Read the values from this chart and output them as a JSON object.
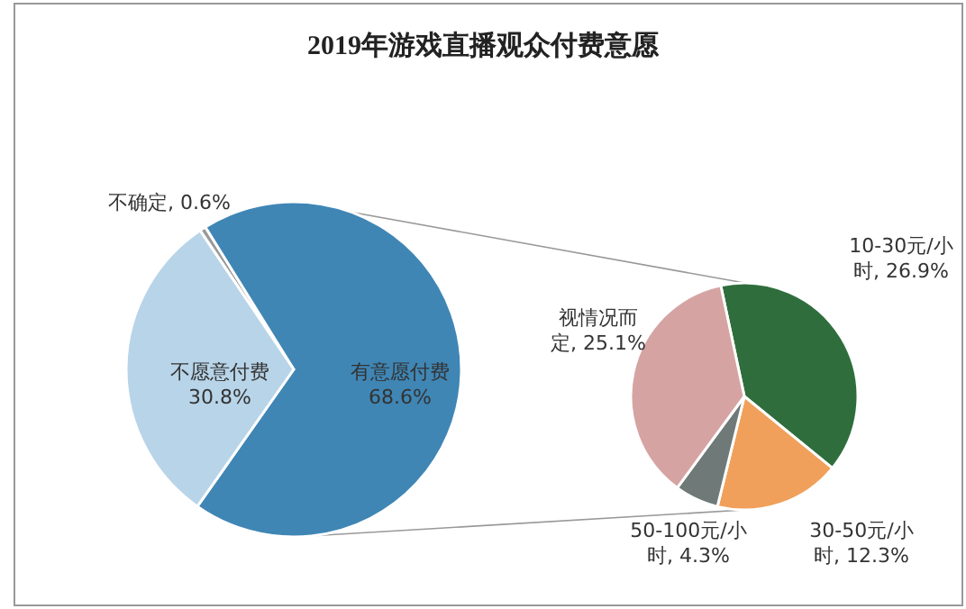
{
  "chart_data": [
    {
      "type": "pie",
      "title": "2019年游戏直播观众付费意愿",
      "categories": [
        "不确定",
        "有意愿付费",
        "不愿意付费"
      ],
      "values": [
        0.6,
        68.6,
        30.8
      ],
      "value_labels": [
        ", 0.6%",
        "68.6%",
        "30.8%"
      ],
      "colors": [
        "#9a9a9a",
        "#3f86b5",
        "#b8d4e8"
      ]
    },
    {
      "type": "pie",
      "categories": [
        "10-30元/小时",
        "30-50元/小时",
        "50-100元/小时",
        "视情况而定"
      ],
      "values": [
        26.9,
        12.3,
        4.3,
        25.1
      ],
      "value_labels": [
        ", 26.9%",
        ", 12.3%",
        ", 4.3%",
        ", 25.1%"
      ],
      "colors": [
        "#2f6e3c",
        "#f0a05a",
        "#6f7a78",
        "#d6a3a3"
      ]
    }
  ]
}
